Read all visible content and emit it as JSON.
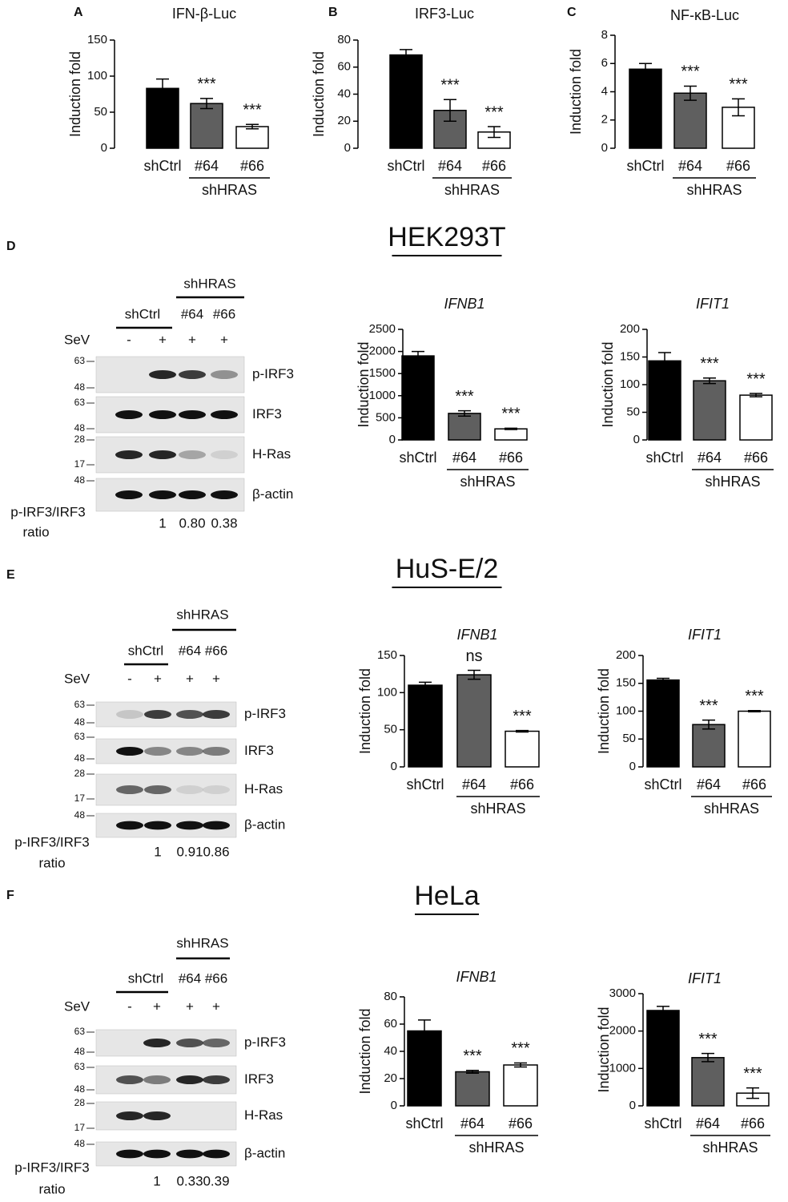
{
  "chart_data": [
    {
      "type": "bar",
      "panel": "A",
      "title": "IFN-β-Luc",
      "y_label": "Induction fold",
      "categories": [
        "shCtrl",
        "#64",
        "#66"
      ],
      "group_label": "shHRAS",
      "values": [
        83,
        62,
        30
      ],
      "errors": [
        13,
        7,
        3
      ],
      "annotations": [
        null,
        "***",
        "***"
      ],
      "colors": [
        "#000000",
        "#5f5f5f",
        "#ffffff"
      ],
      "ylim": [
        0,
        150
      ],
      "yticks": [
        0,
        50,
        100,
        150
      ],
      "title_italic": false
    },
    {
      "type": "bar",
      "panel": "B",
      "title": "IRF3-Luc",
      "y_label": "Induction fold",
      "categories": [
        "shCtrl",
        "#64",
        "#66"
      ],
      "group_label": "shHRAS",
      "values": [
        69,
        28,
        12
      ],
      "errors": [
        4,
        8,
        4
      ],
      "annotations": [
        null,
        "***",
        "***"
      ],
      "colors": [
        "#000000",
        "#5f5f5f",
        "#ffffff"
      ],
      "ylim": [
        0,
        80
      ],
      "yticks": [
        0,
        20,
        40,
        60,
        80
      ],
      "title_italic": false
    },
    {
      "type": "bar",
      "panel": "C",
      "title": "NF-κB-Luc",
      "y_label": "Induction fold",
      "categories": [
        "shCtrl",
        "#64",
        "#66"
      ],
      "group_label": "shHRAS",
      "values": [
        5.6,
        3.9,
        2.9
      ],
      "errors": [
        0.4,
        0.5,
        0.6
      ],
      "annotations": [
        null,
        "***",
        "***"
      ],
      "colors": [
        "#000000",
        "#5f5f5f",
        "#ffffff"
      ],
      "ylim": [
        0,
        8
      ],
      "yticks": [
        0,
        2,
        4,
        6,
        8
      ],
      "title_italic": false
    },
    {
      "type": "bar",
      "title": "IFNB1",
      "y_label": "Induction fold",
      "categories": [
        "shCtrl",
        "#64",
        "#66"
      ],
      "group_label": "shHRAS",
      "values": [
        1900,
        600,
        250
      ],
      "errors": [
        100,
        60,
        15
      ],
      "annotations": [
        null,
        "***",
        "***"
      ],
      "colors": [
        "#000000",
        "#5f5f5f",
        "#ffffff"
      ],
      "ylim": [
        0,
        2500
      ],
      "yticks": [
        0,
        500,
        1000,
        1500,
        2000,
        2500
      ],
      "title_italic": true
    },
    {
      "type": "bar",
      "title": "IFIT1",
      "y_label": "Induction fold",
      "categories": [
        "shCtrl",
        "#64",
        "#66"
      ],
      "group_label": "shHRAS",
      "values": [
        143,
        107,
        81
      ],
      "errors": [
        15,
        5,
        3
      ],
      "annotations": [
        null,
        "***",
        "***"
      ],
      "colors": [
        "#000000",
        "#5f5f5f",
        "#ffffff"
      ],
      "ylim": [
        0,
        200
      ],
      "yticks": [
        0,
        50,
        100,
        150,
        200
      ],
      "title_italic": true
    },
    {
      "type": "bar",
      "title": "IFNB1",
      "y_label": "Induction fold",
      "categories": [
        "shCtrl",
        "#64",
        "#66"
      ],
      "group_label": "shHRAS",
      "values": [
        110,
        124,
        48
      ],
      "errors": [
        4,
        6,
        1
      ],
      "annotations": [
        null,
        "ns",
        "***"
      ],
      "colors": [
        "#000000",
        "#5f5f5f",
        "#ffffff"
      ],
      "ylim": [
        0,
        150
      ],
      "yticks": [
        0,
        50,
        100,
        150
      ],
      "title_italic": true
    },
    {
      "type": "bar",
      "title": "IFIT1",
      "y_label": "Induction fold",
      "categories": [
        "shCtrl",
        "#64",
        "#66"
      ],
      "group_label": "shHRAS",
      "values": [
        156,
        76,
        100
      ],
      "errors": [
        3,
        8,
        1
      ],
      "annotations": [
        null,
        "***",
        "***"
      ],
      "colors": [
        "#000000",
        "#5f5f5f",
        "#ffffff"
      ],
      "ylim": [
        0,
        200
      ],
      "yticks": [
        0,
        50,
        100,
        150,
        200
      ],
      "title_italic": true
    },
    {
      "type": "bar",
      "title": "IFNB1",
      "y_label": "Induction fold",
      "categories": [
        "shCtrl",
        "#64",
        "#66"
      ],
      "group_label": "shHRAS",
      "values": [
        55,
        25,
        30
      ],
      "errors": [
        8,
        1,
        1.5
      ],
      "annotations": [
        null,
        "***",
        "***"
      ],
      "colors": [
        "#000000",
        "#5f5f5f",
        "#ffffff"
      ],
      "ylim": [
        0,
        80
      ],
      "yticks": [
        0,
        20,
        40,
        60,
        80
      ],
      "title_italic": true
    },
    {
      "type": "bar",
      "title": "IFIT1",
      "y_label": "Induction fold",
      "categories": [
        "shCtrl",
        "#64",
        "#66"
      ],
      "group_label": "shHRAS",
      "values": [
        2550,
        1290,
        340
      ],
      "errors": [
        110,
        110,
        140
      ],
      "annotations": [
        null,
        "***",
        "***"
      ],
      "colors": [
        "#000000",
        "#5f5f5f",
        "#ffffff"
      ],
      "ylim": [
        0,
        3000
      ],
      "yticks": [
        0,
        1000,
        2000,
        3000
      ],
      "title_italic": true
    }
  ],
  "sections": [
    {
      "panel": "D",
      "cell_line": "HEK293T",
      "blot": {
        "group_label": "shHRAS",
        "ctrl_label": "shCtrl",
        "lane_labels": [
          "#64",
          "#66"
        ],
        "treatment": "SeV",
        "treatment_signs": [
          "-",
          "+",
          "+",
          "+"
        ],
        "bands": [
          {
            "name": "p-IRF3",
            "markers": [
              "63",
              "48"
            ]
          },
          {
            "name": "IRF3",
            "markers": [
              "63",
              "48"
            ]
          },
          {
            "name": "H-Ras",
            "markers": [
              "28",
              "17"
            ]
          },
          {
            "name": "β-actin",
            "markers": [
              "48"
            ]
          }
        ],
        "ratio_label": [
          "p-IRF3/IRF3",
          "ratio"
        ],
        "ratios": [
          "1",
          "0.80",
          "0.38"
        ]
      }
    },
    {
      "panel": "E",
      "cell_line": "HuS-E/2",
      "blot": {
        "group_label": "shHRAS",
        "ctrl_label": "shCtrl",
        "lane_labels": [
          "#64",
          "#66"
        ],
        "treatment": "SeV",
        "treatment_signs": [
          "-",
          "+",
          "+",
          "+"
        ],
        "bands": [
          {
            "name": "p-IRF3",
            "markers": [
              "63",
              "48"
            ]
          },
          {
            "name": "IRF3",
            "markers": [
              "63",
              "48"
            ]
          },
          {
            "name": "H-Ras",
            "markers": [
              "28",
              "17"
            ]
          },
          {
            "name": "β-actin",
            "markers": [
              "48"
            ]
          }
        ],
        "ratio_label": [
          "p-IRF3/IRF3",
          "ratio"
        ],
        "ratios": [
          "1",
          "0.91",
          "0.86"
        ]
      }
    },
    {
      "panel": "F",
      "cell_line": "HeLa",
      "blot": {
        "group_label": "shHRAS",
        "ctrl_label": "shCtrl",
        "lane_labels": [
          "#64",
          "#66"
        ],
        "treatment": "SeV",
        "treatment_signs": [
          "-",
          "+",
          "+",
          "+"
        ],
        "bands": [
          {
            "name": "p-IRF3",
            "markers": [
              "63",
              "48"
            ]
          },
          {
            "name": "IRF3",
            "markers": [
              "63",
              "48"
            ]
          },
          {
            "name": "H-Ras",
            "markers": [
              "28",
              "17"
            ]
          },
          {
            "name": "β-actin",
            "markers": [
              "48"
            ]
          }
        ],
        "ratio_label": [
          "p-IRF3/IRF3",
          "ratio"
        ],
        "ratios": [
          "1",
          "0.33",
          "0.39"
        ]
      }
    }
  ]
}
